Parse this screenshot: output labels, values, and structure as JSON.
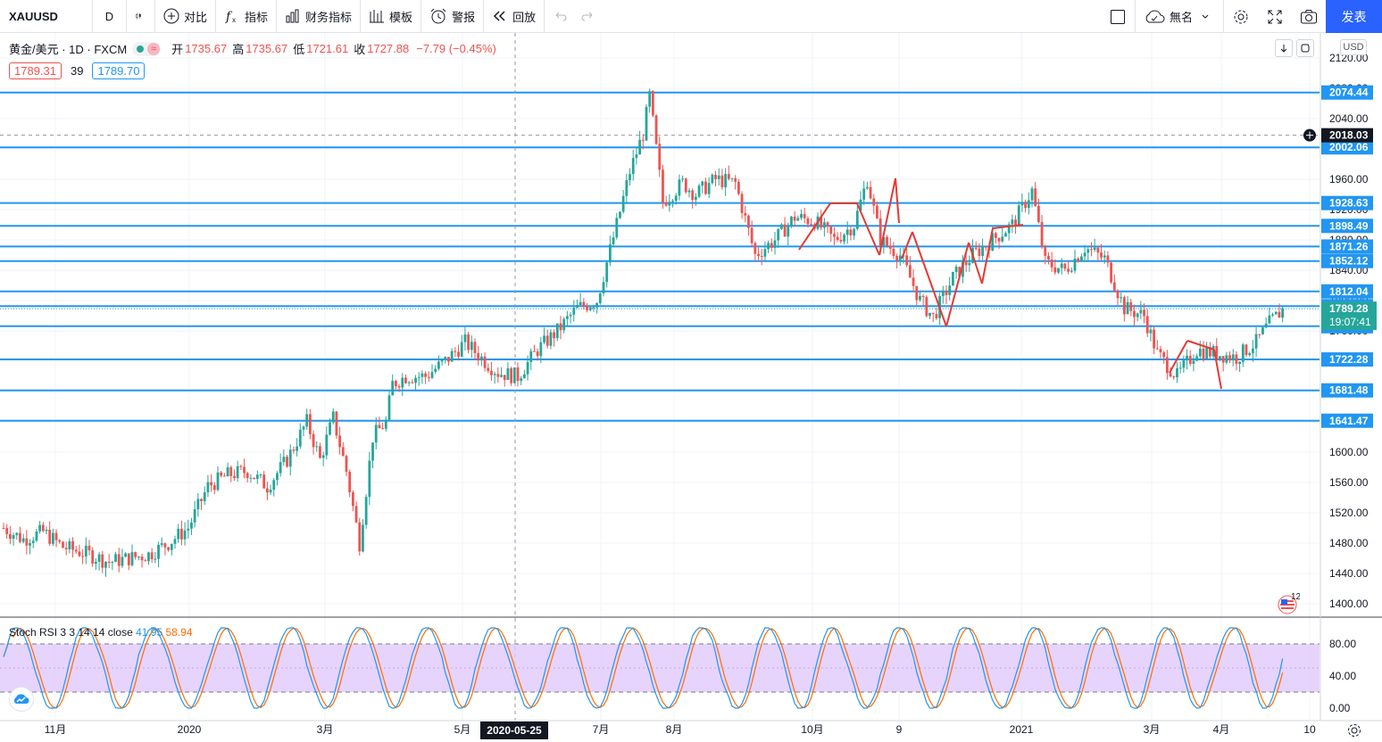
{
  "toolbar": {
    "symbol": "XAUUSD",
    "interval": "D",
    "compare": "对比",
    "indicators": "指标",
    "financials": "财务指标",
    "templates": "模板",
    "alerts": "警报",
    "replay": "回放",
    "layout_name": "無名",
    "publish": "发表"
  },
  "legend": {
    "title": "黄金/美元 · 1D · FXCM",
    "open_label": "开",
    "open": "1735.67",
    "high_label": "高",
    "high": "1735.67",
    "low_label": "低",
    "low": "1721.61",
    "close_label": "收",
    "close": "1727.88",
    "change": "−7.79 (−0.45%)",
    "bid": "1789.31",
    "spread": "39",
    "ask": "1789.70"
  },
  "currency": "USD",
  "price_axis": {
    "ticks": [
      "2120.00",
      "2080.00",
      "2040.00",
      "2000.00",
      "1960.00",
      "1920.00",
      "1880.00",
      "1840.00",
      "1800.00",
      "1760.00",
      "1720.00",
      "1680.00",
      "1640.00",
      "1600.00",
      "1560.00",
      "1520.00",
      "1480.00",
      "1440.00",
      "1400.00"
    ],
    "current_price": "1789.28",
    "countdown": "19:07:41",
    "crosshair_price": "2018.03"
  },
  "horizontal_levels": [
    "2074.44",
    "2002.06",
    "1928.63",
    "1898.49",
    "1871.26",
    "1852.12",
    "1812.04",
    "1792.60",
    "1766.11",
    "1722.28",
    "1681.48",
    "1641.47"
  ],
  "time_axis": {
    "labels": [
      "11月",
      "2020",
      "3月",
      "5月",
      "7月",
      "8月",
      "10月",
      "9",
      "2021",
      "3月",
      "4月",
      "10"
    ],
    "crosshair_date": "2020-05-25"
  },
  "stoch": {
    "title": "Stoch RSI 3 3 14 14 close",
    "k": "41.95",
    "d": "58.94",
    "ticks": [
      "80.00",
      "40.00",
      "0.00"
    ]
  },
  "badge": "12",
  "colors": {
    "up": "#26a69a",
    "down": "#ef5350",
    "level": "#2196f3",
    "accent": "#2962ff",
    "stoch_k": "#2196f3",
    "stoch_d": "#ff6d00",
    "stoch_band": "#e1c9fb"
  },
  "chart_data": {
    "type": "candlestick",
    "symbol": "XAUUSD",
    "timeframe": "1D",
    "ylim": [
      1380,
      2140
    ],
    "price_path": [
      [
        0,
        1500
      ],
      [
        6,
        1485
      ],
      [
        12,
        1495
      ],
      [
        18,
        1475
      ],
      [
        26,
        1465
      ],
      [
        32,
        1455
      ],
      [
        44,
        1465
      ],
      [
        50,
        1480
      ],
      [
        56,
        1500
      ],
      [
        62,
        1555
      ],
      [
        68,
        1570
      ],
      [
        74,
        1575
      ],
      [
        80,
        1555
      ],
      [
        86,
        1590
      ],
      [
        92,
        1640
      ],
      [
        96,
        1590
      ],
      [
        100,
        1645
      ],
      [
        104,
        1575
      ],
      [
        108,
        1480
      ],
      [
        112,
        1620
      ],
      [
        116,
        1640
      ],
      [
        118,
        1690
      ],
      [
        122,
        1700
      ],
      [
        128,
        1700
      ],
      [
        134,
        1720
      ],
      [
        140,
        1745
      ],
      [
        146,
        1720
      ],
      [
        150,
        1705
      ],
      [
        156,
        1700
      ],
      [
        162,
        1735
      ],
      [
        168,
        1760
      ],
      [
        174,
        1790
      ],
      [
        180,
        1800
      ],
      [
        186,
        1900
      ],
      [
        190,
        1970
      ],
      [
        194,
        2020
      ],
      [
        196,
        2070
      ],
      [
        200,
        1930
      ],
      [
        206,
        1955
      ],
      [
        210,
        1940
      ],
      [
        216,
        1960
      ],
      [
        222,
        1955
      ],
      [
        228,
        1860
      ],
      [
        234,
        1880
      ],
      [
        240,
        1910
      ],
      [
        246,
        1905
      ],
      [
        252,
        1880
      ],
      [
        258,
        1900
      ],
      [
        262,
        1960
      ],
      [
        266,
        1880
      ],
      [
        272,
        1860
      ],
      [
        278,
        1800
      ],
      [
        282,
        1778
      ],
      [
        288,
        1830
      ],
      [
        294,
        1860
      ],
      [
        300,
        1880
      ],
      [
        306,
        1900
      ],
      [
        312,
        1945
      ],
      [
        316,
        1850
      ],
      [
        322,
        1840
      ],
      [
        328,
        1870
      ],
      [
        334,
        1855
      ],
      [
        340,
        1790
      ],
      [
        346,
        1780
      ],
      [
        350,
        1730
      ],
      [
        356,
        1700
      ],
      [
        362,
        1735
      ],
      [
        368,
        1730
      ],
      [
        374,
        1725
      ],
      [
        380,
        1745
      ],
      [
        384,
        1770
      ],
      [
        388,
        1788
      ]
    ],
    "stoch_rsi": {
      "k_last": 41.95,
      "d_last": 58.94,
      "upper": 80,
      "lower": 20
    }
  }
}
